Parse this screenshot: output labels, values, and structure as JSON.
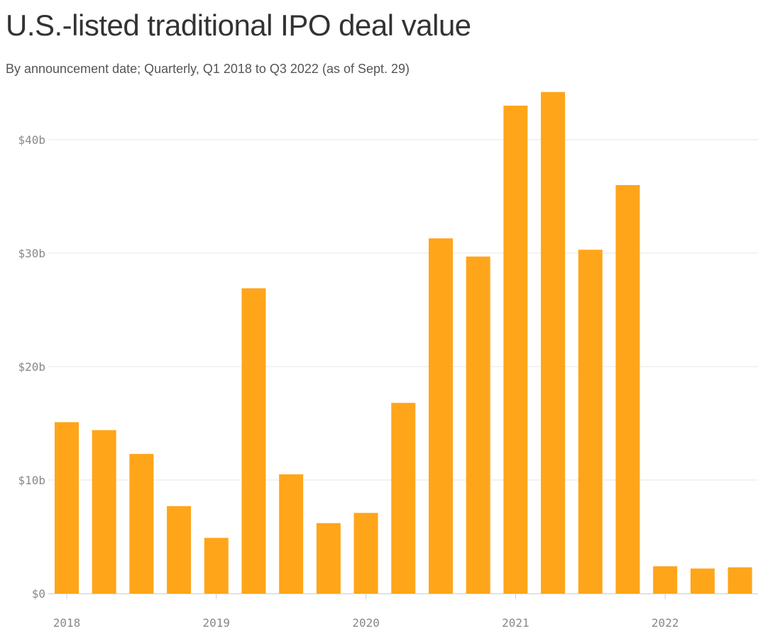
{
  "title": "U.S.-listed traditional IPO deal value",
  "subtitle": "By announcement date; Quarterly, Q1 2018 to Q3 2022 (as of Sept. 29)",
  "colors": {
    "bar": "#FFA519",
    "grid": "#e6e6e6",
    "axis": "#cccccc",
    "tick_text": "#888888"
  },
  "chart_data": {
    "type": "bar",
    "title": "U.S.-listed traditional IPO deal value",
    "xlabel": "",
    "ylabel": "",
    "ylim": [
      0,
      44
    ],
    "categories": [
      "Q1 2018",
      "Q2 2018",
      "Q3 2018",
      "Q4 2018",
      "Q1 2019",
      "Q2 2019",
      "Q3 2019",
      "Q4 2019",
      "Q1 2020",
      "Q2 2020",
      "Q3 2020",
      "Q4 2020",
      "Q1 2021",
      "Q2 2021",
      "Q3 2021",
      "Q4 2021",
      "Q1 2022",
      "Q2 2022",
      "Q3 2022"
    ],
    "values": [
      15.1,
      14.4,
      12.3,
      7.7,
      4.9,
      26.9,
      10.5,
      6.2,
      7.1,
      16.8,
      31.3,
      29.7,
      43.0,
      44.2,
      30.3,
      36.0,
      2.4,
      2.2,
      2.3
    ],
    "unit": "billion USD",
    "y_ticks": [
      {
        "value": 0,
        "label": "$0"
      },
      {
        "value": 10,
        "label": "$10b"
      },
      {
        "value": 20,
        "label": "$20b"
      },
      {
        "value": 30,
        "label": "$30b"
      },
      {
        "value": 40,
        "label": "$40b"
      }
    ],
    "x_ticks": [
      {
        "index": 0,
        "label": "2018"
      },
      {
        "index": 4,
        "label": "2019"
      },
      {
        "index": 8,
        "label": "2020"
      },
      {
        "index": 12,
        "label": "2021"
      },
      {
        "index": 16,
        "label": "2022"
      }
    ]
  }
}
